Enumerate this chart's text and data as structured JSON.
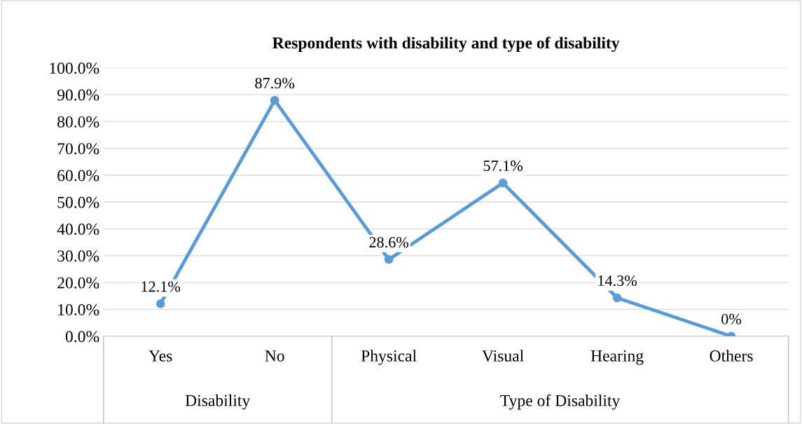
{
  "chart_data": {
    "type": "line",
    "title": "Respondents with disability and type of disability",
    "categories": [
      "Yes",
      "No",
      "Physical",
      "Visual",
      "Hearing",
      "Others"
    ],
    "series": [
      {
        "color": "#5b9bd5",
        "values": [
          12.1,
          87.9,
          28.6,
          57.1,
          14.3,
          0
        ],
        "value_labels": [
          "12.1%",
          "87.9%",
          "28.6%",
          "57.1%",
          "14.3%",
          "0%"
        ]
      }
    ],
    "ylim": [
      0,
      100
    ],
    "yticks": [
      {
        "value": 0,
        "label": "0.0%"
      },
      {
        "value": 10,
        "label": "10.0%"
      },
      {
        "value": 20,
        "label": "20.0%"
      },
      {
        "value": 30,
        "label": "30.0%"
      },
      {
        "value": 40,
        "label": "40.0%"
      },
      {
        "value": 50,
        "label": "50.0%"
      },
      {
        "value": 60,
        "label": "60.0%"
      },
      {
        "value": 70,
        "label": "70.0%"
      },
      {
        "value": 80,
        "label": "80.0%"
      },
      {
        "value": 90,
        "label": "90.0%"
      },
      {
        "value": 100,
        "label": "100.0%"
      }
    ],
    "annotations": [
      "Disability",
      "Type of Disability"
    ],
    "grid": "y",
    "marker": "circle",
    "line_style": "solid"
  }
}
